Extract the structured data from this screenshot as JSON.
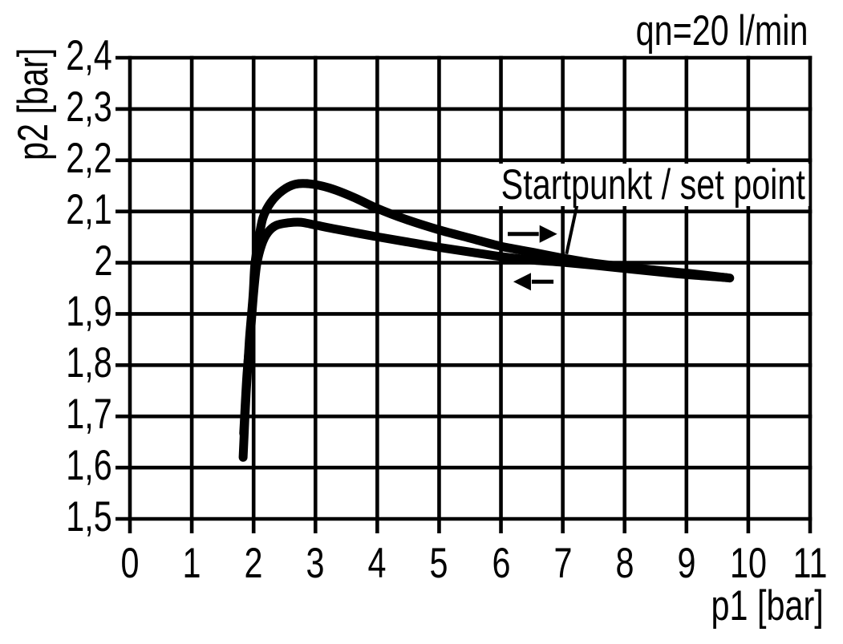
{
  "page": {
    "background_color": "#ffffff",
    "ink_color": "#000000"
  },
  "chart_data": {
    "type": "line",
    "title": "",
    "flow_annotation": "qn=20 l/min",
    "xlabel": "p1 [bar]",
    "ylabel": "p2 [bar]",
    "xlim": [
      0,
      11
    ],
    "ylim": [
      1.5,
      2.4
    ],
    "grid": true,
    "legend": "none",
    "x_ticks": [
      {
        "value": 0,
        "label": "0"
      },
      {
        "value": 1,
        "label": "1"
      },
      {
        "value": 2,
        "label": "2"
      },
      {
        "value": 3,
        "label": "3"
      },
      {
        "value": 4,
        "label": "4"
      },
      {
        "value": 5,
        "label": "5"
      },
      {
        "value": 6,
        "label": "6"
      },
      {
        "value": 7,
        "label": "7"
      },
      {
        "value": 8,
        "label": "8"
      },
      {
        "value": 9,
        "label": "9"
      },
      {
        "value": 10,
        "label": "10"
      },
      {
        "value": 11,
        "label": "11"
      }
    ],
    "y_ticks": [
      {
        "value": 1.5,
        "label": "1,5"
      },
      {
        "value": 1.6,
        "label": "1,6"
      },
      {
        "value": 1.7,
        "label": "1,7"
      },
      {
        "value": 1.8,
        "label": "1,8"
      },
      {
        "value": 1.9,
        "label": "1,9"
      },
      {
        "value": 2.0,
        "label": "2"
      },
      {
        "value": 2.1,
        "label": "2,1"
      },
      {
        "value": 2.2,
        "label": "2,2"
      },
      {
        "value": 2.3,
        "label": "2,3"
      },
      {
        "value": 2.4,
        "label": "2,4"
      }
    ],
    "set_point_annotation": {
      "label": "Startpunkt / set point",
      "leader_from": [
        7.24,
        2.118
      ],
      "leader_to": [
        7.06,
        2.017
      ],
      "point": [
        7.05,
        2.01
      ]
    },
    "direction_arrows": [
      {
        "name": "p1-increasing-arrow",
        "direction": "right",
        "y": 2.056,
        "x_tail": 6.11,
        "x_tip": 6.91
      },
      {
        "name": "p1-decreasing-arrow",
        "direction": "left",
        "y": 1.963,
        "x_tail": 6.85,
        "x_tip": 6.2
      }
    ],
    "series": [
      {
        "name": "upper-branch-hysteresis",
        "points": [
          [
            1.83,
            1.62
          ],
          [
            1.88,
            1.746
          ],
          [
            1.93,
            1.847
          ],
          [
            1.99,
            1.934
          ],
          [
            2.02,
            1.996
          ],
          [
            2.08,
            2.043
          ],
          [
            2.15,
            2.087
          ],
          [
            2.28,
            2.118
          ],
          [
            2.47,
            2.141
          ],
          [
            2.67,
            2.153
          ],
          [
            2.9,
            2.154
          ],
          [
            3.22,
            2.146
          ],
          [
            3.61,
            2.128
          ],
          [
            3.98,
            2.107
          ],
          [
            4.45,
            2.085
          ],
          [
            5.0,
            2.064
          ],
          [
            5.5,
            2.048
          ],
          [
            6.0,
            2.032
          ],
          [
            6.53,
            2.02
          ],
          [
            7.0,
            2.009
          ],
          [
            7.5,
            1.999
          ],
          [
            8.02,
            1.992
          ],
          [
            8.54,
            1.985
          ],
          [
            9.05,
            1.979
          ],
          [
            9.7,
            1.97
          ]
        ]
      },
      {
        "name": "lower-branch-hysteresis",
        "points": [
          [
            1.84,
            1.667
          ],
          [
            1.89,
            1.777
          ],
          [
            1.95,
            1.863
          ],
          [
            2.0,
            1.941
          ],
          [
            2.05,
            1.996
          ],
          [
            2.13,
            2.035
          ],
          [
            2.23,
            2.059
          ],
          [
            2.37,
            2.073
          ],
          [
            2.57,
            2.078
          ],
          [
            2.76,
            2.079
          ],
          [
            3.02,
            2.073
          ],
          [
            3.35,
            2.065
          ],
          [
            3.98,
            2.051
          ],
          [
            4.51,
            2.04
          ],
          [
            5.0,
            2.03
          ],
          [
            5.55,
            2.02
          ],
          [
            6.0,
            2.012
          ],
          [
            6.53,
            2.005
          ],
          [
            6.98,
            2.001
          ],
          [
            7.5,
            1.995
          ],
          [
            8.15,
            1.987
          ],
          [
            8.8,
            1.979
          ],
          [
            9.31,
            1.974
          ],
          [
            9.64,
            1.971
          ]
        ]
      }
    ]
  }
}
